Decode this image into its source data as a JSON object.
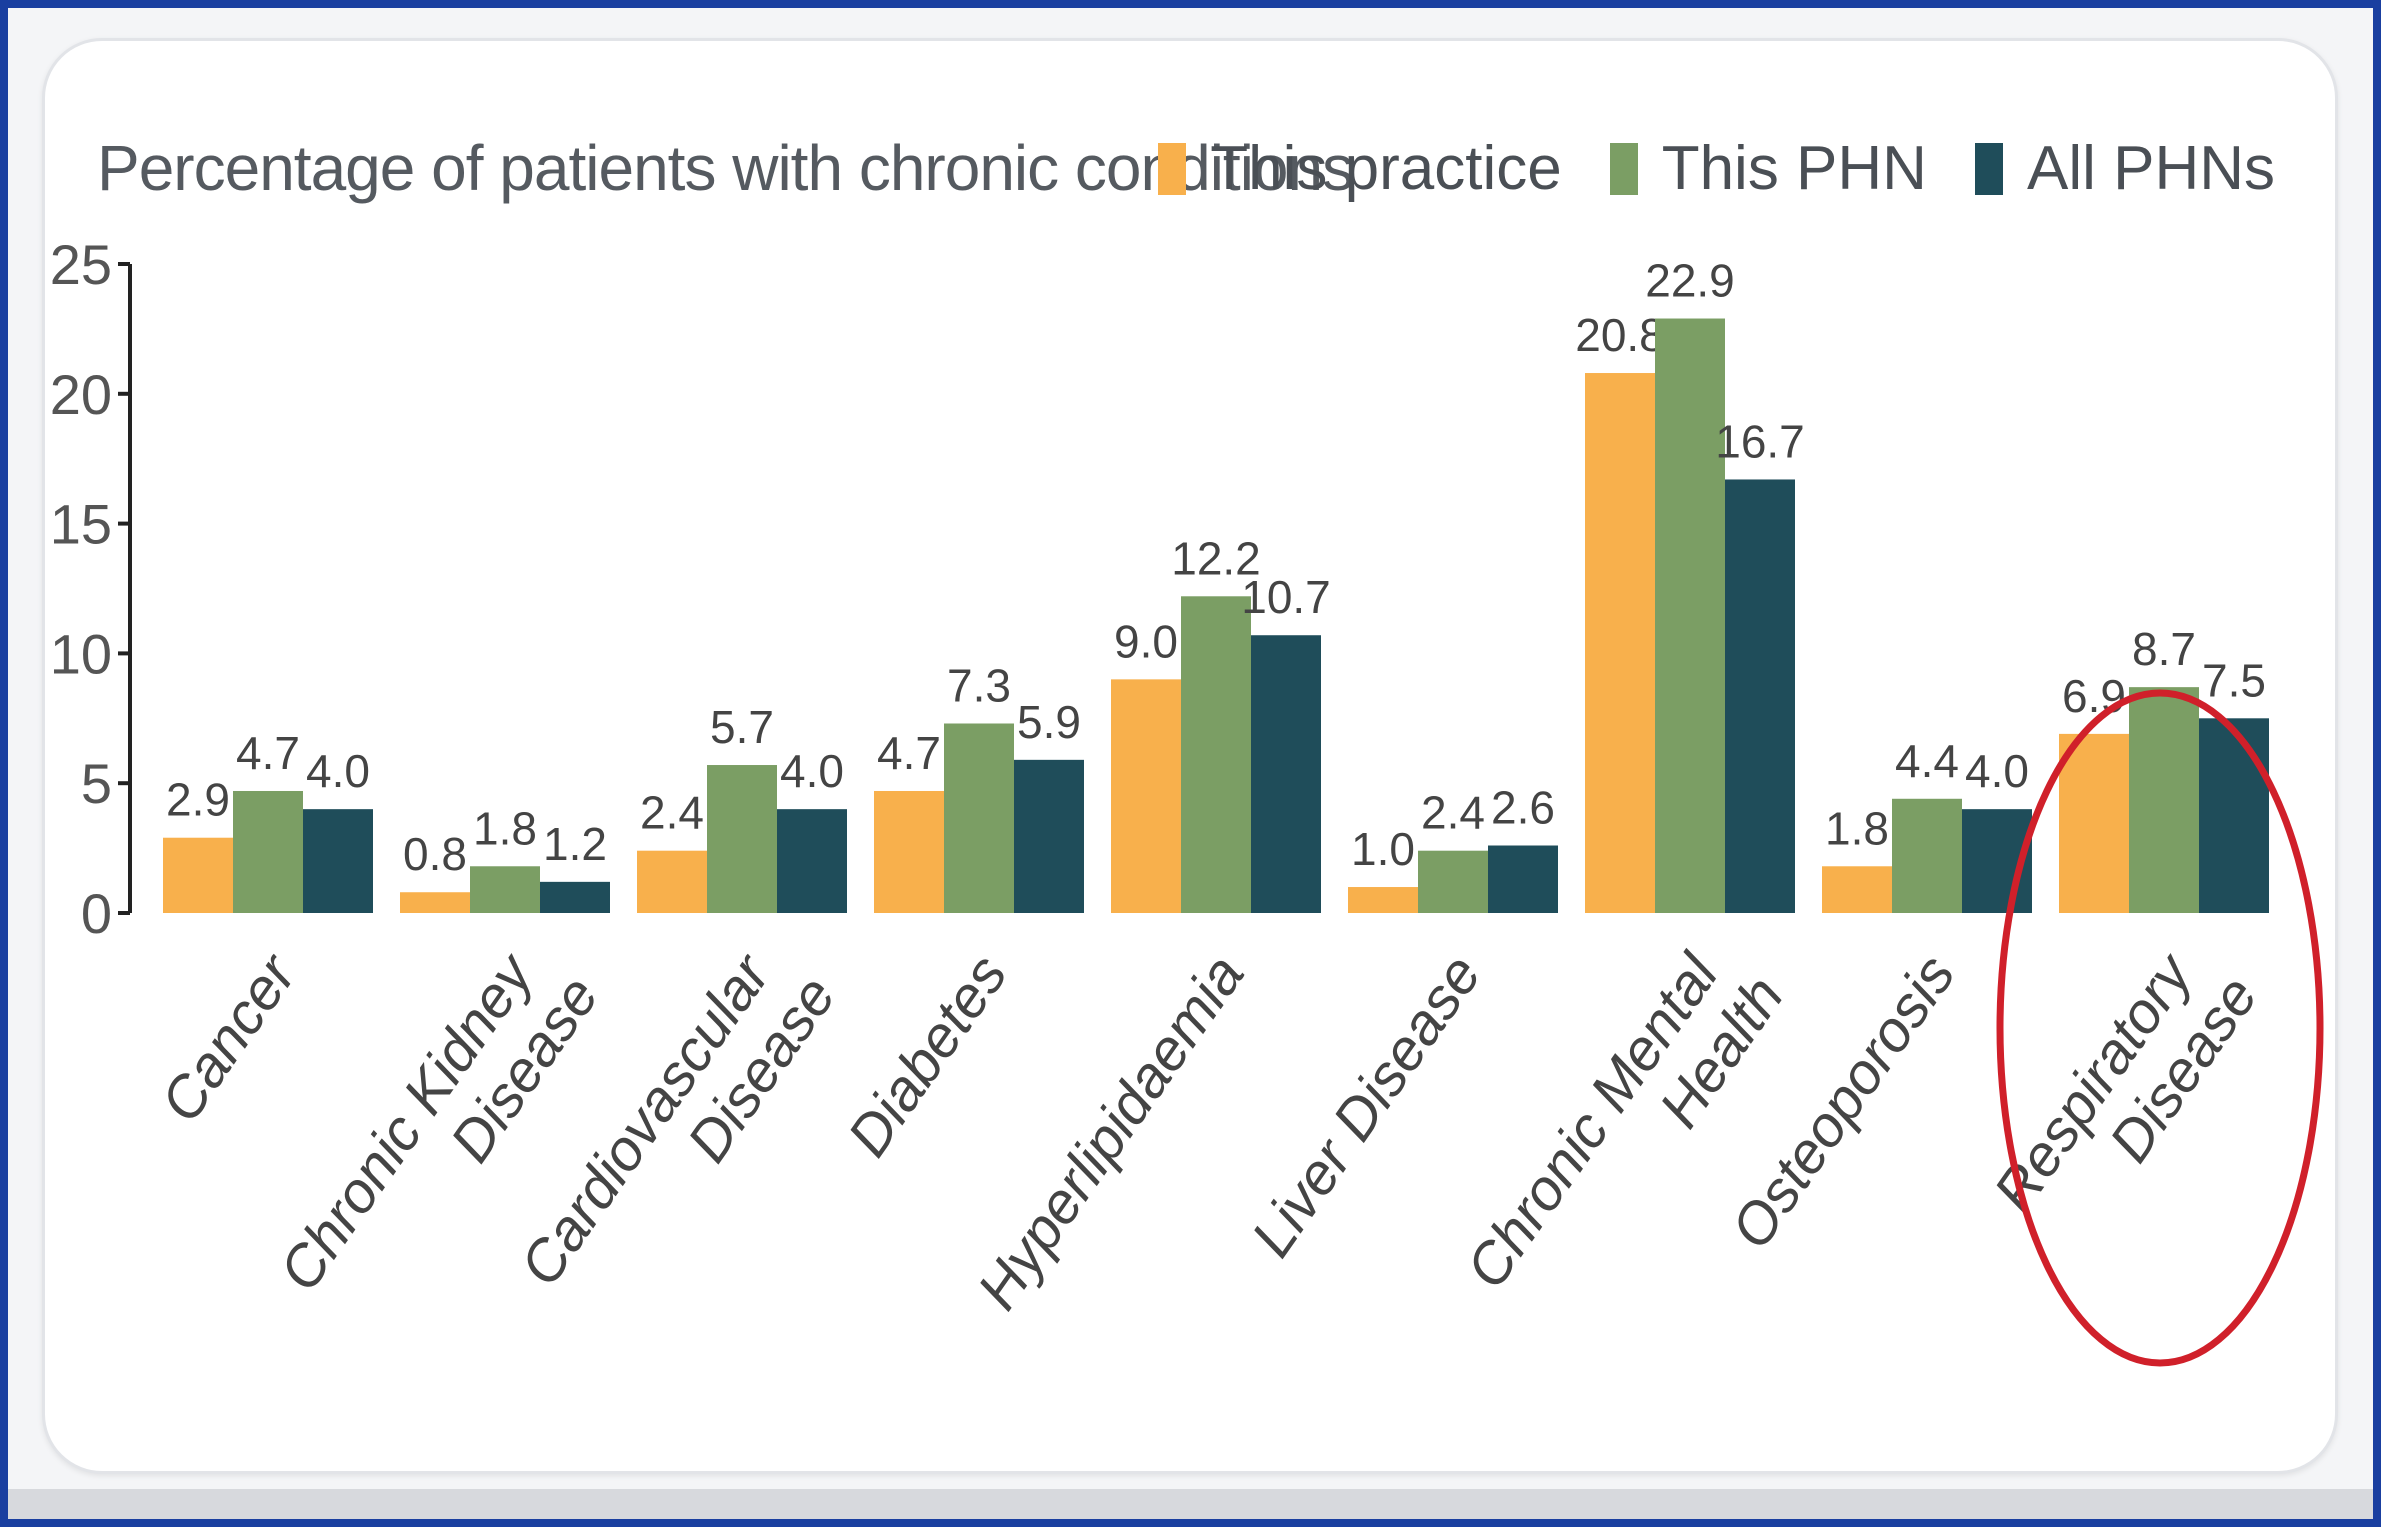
{
  "chart_data": {
    "type": "bar",
    "title": "Percentage of patients with chronic conditions",
    "xlabel": "",
    "ylabel": "",
    "ylim": [
      0,
      25
    ],
    "yticks": [
      0,
      5,
      10,
      15,
      20,
      25
    ],
    "categories": [
      "Cancer",
      "Chronic Kidney Disease",
      "Cardiovascular Disease",
      "Diabetes",
      "Hyperlipidaemia",
      "Liver Disease",
      "Chronic Mental Health",
      "Osteoporosis",
      "Respiratory Disease"
    ],
    "category_lines": [
      [
        "Cancer"
      ],
      [
        "Chronic Kidney",
        "Disease"
      ],
      [
        "Cardiovascular",
        "Disease"
      ],
      [
        "Diabetes"
      ],
      [
        "Hyperlipidaemia"
      ],
      [
        "Liver Disease"
      ],
      [
        "Chronic Mental",
        "Health"
      ],
      [
        "Osteoporosis"
      ],
      [
        "Respiratory",
        "Disease"
      ]
    ],
    "series": [
      {
        "name": "This practice",
        "color": "#f8b04c",
        "values": [
          2.9,
          0.8,
          2.4,
          4.7,
          9.0,
          1.0,
          20.8,
          1.8,
          6.9
        ]
      },
      {
        "name": "This PHN",
        "color": "#7b9e64",
        "values": [
          4.7,
          1.8,
          5.7,
          7.3,
          12.2,
          2.4,
          22.9,
          4.4,
          8.7
        ]
      },
      {
        "name": "All PHNs",
        "color": "#1f4d5a",
        "values": [
          4.0,
          1.2,
          4.0,
          5.9,
          10.7,
          2.6,
          16.7,
          4.0,
          7.5
        ]
      }
    ],
    "legend_position": "top-right",
    "grid": false,
    "annotation": {
      "type": "ellipse",
      "category": "Respiratory Disease",
      "color": "#d0202a"
    }
  }
}
